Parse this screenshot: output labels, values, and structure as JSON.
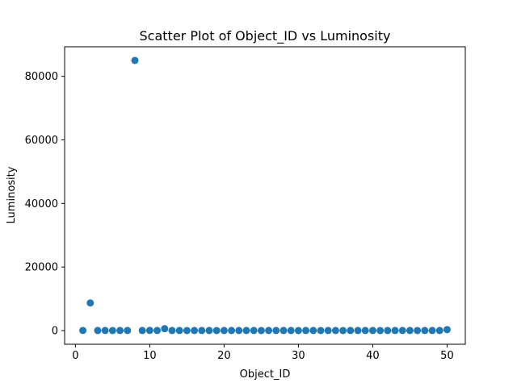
{
  "chart_data": {
    "type": "scatter",
    "title": "Scatter Plot of Object_ID vs Luminosity",
    "xlabel": "Object_ID",
    "ylabel": "Luminosity",
    "xlim": [
      -1.45,
      52.45
    ],
    "ylim": [
      -4300,
      89300
    ],
    "x_ticks": [
      0,
      10,
      20,
      30,
      40,
      50
    ],
    "y_ticks": [
      0,
      20000,
      40000,
      60000,
      80000
    ],
    "grid": false,
    "legend": "none",
    "marker_color": "#1f77b4",
    "x": [
      1,
      2,
      3,
      4,
      5,
      6,
      7,
      8,
      9,
      10,
      11,
      12,
      13,
      14,
      15,
      16,
      17,
      18,
      19,
      20,
      21,
      22,
      23,
      24,
      25,
      26,
      27,
      28,
      29,
      30,
      31,
      32,
      33,
      34,
      35,
      36,
      37,
      38,
      39,
      40,
      41,
      42,
      43,
      44,
      45,
      46,
      47,
      48,
      49,
      50
    ],
    "y": [
      50,
      8700,
      30,
      40,
      20,
      30,
      30,
      85000,
      40,
      60,
      30,
      600,
      40,
      30,
      20,
      30,
      40,
      30,
      20,
      30,
      30,
      40,
      30,
      30,
      20,
      30,
      40,
      30,
      30,
      20,
      30,
      40,
      20,
      30,
      30,
      20,
      30,
      40,
      30,
      30,
      20,
      30,
      30,
      40,
      30,
      20,
      30,
      30,
      40,
      300
    ]
  }
}
